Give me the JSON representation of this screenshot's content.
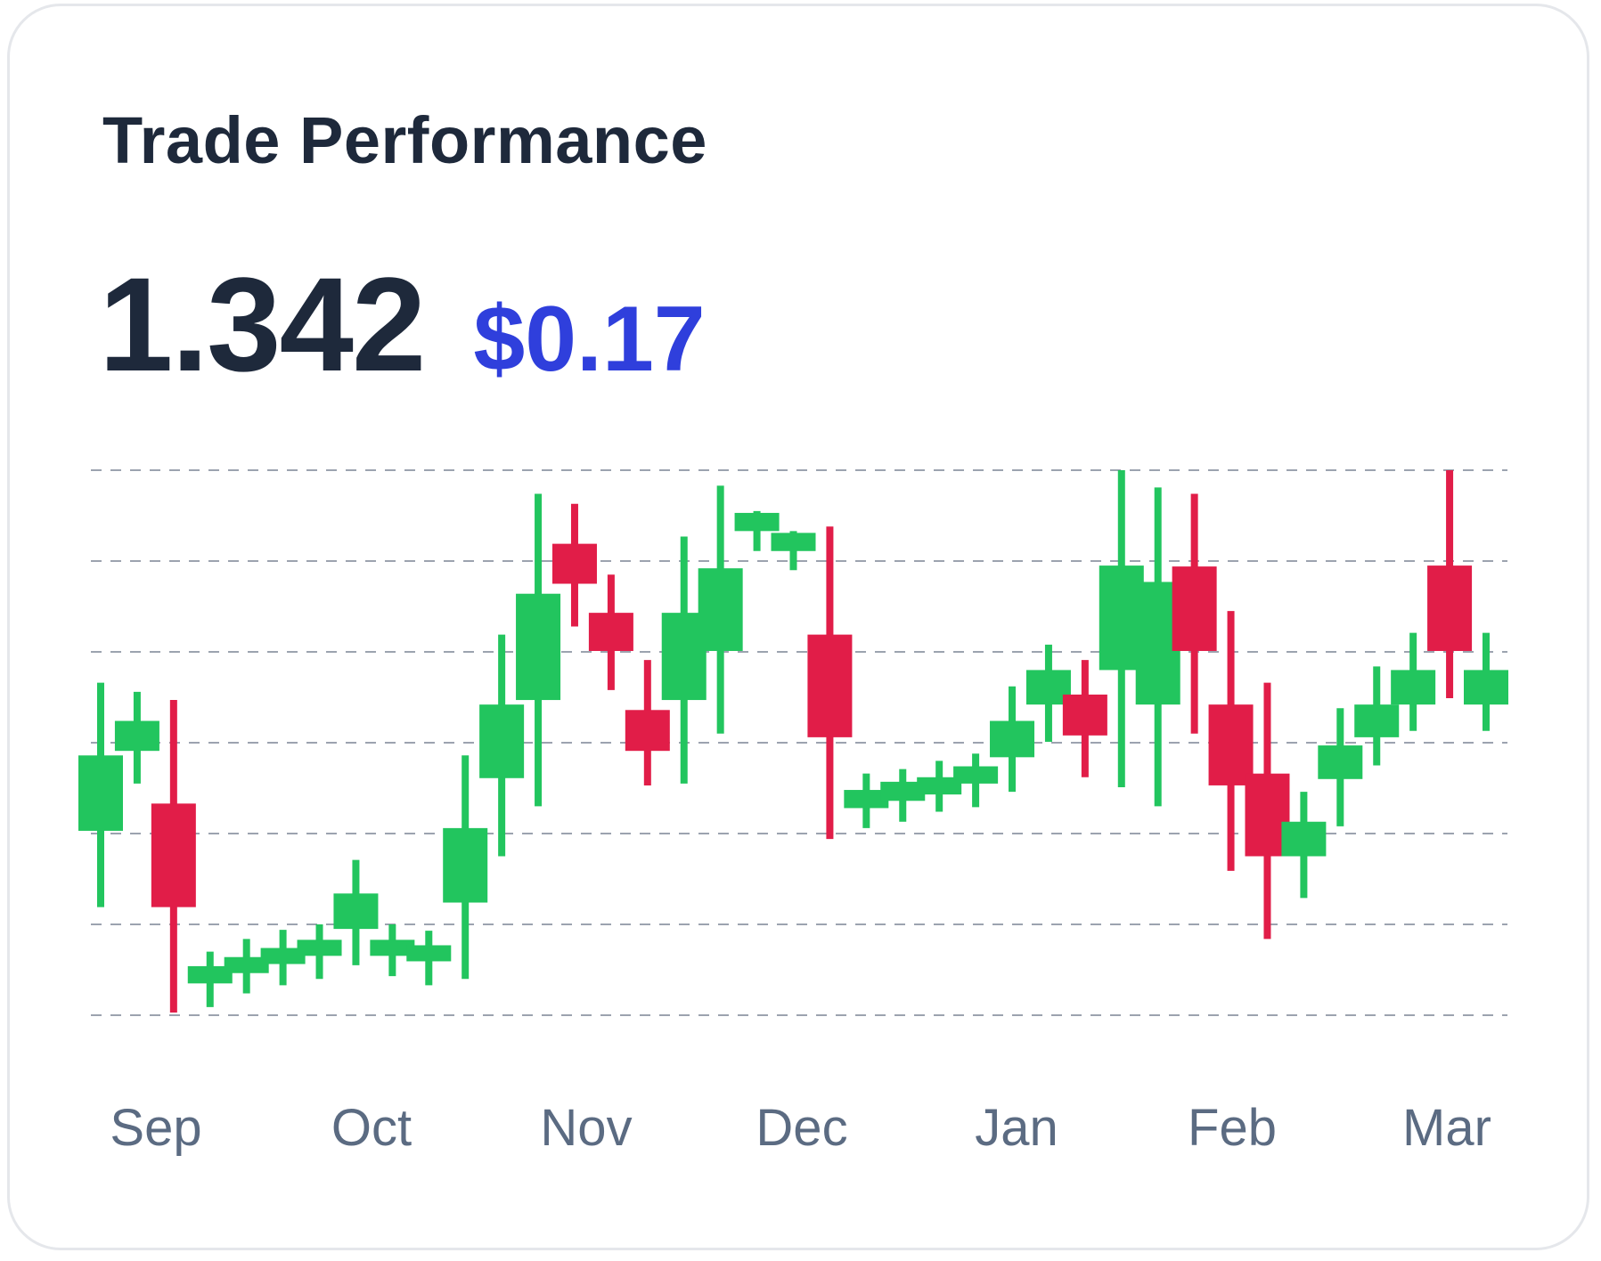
{
  "card": {
    "title": "Trade Performance",
    "metric_value": "1.342",
    "metric_change": "$0.17"
  },
  "colors": {
    "up": "#22c55e",
    "down": "#e11d48",
    "grid": "#9ca3af",
    "title": "#1e293b",
    "accent": "#2f3fdc",
    "axis_text": "#5b6b82"
  },
  "chart_data": {
    "type": "candlestick",
    "title": "",
    "xlabel": "",
    "ylabel": "",
    "ylim": [
      0,
      6
    ],
    "grid": true,
    "legend": "none",
    "x_labels": [
      "Sep",
      "Oct",
      "Nov",
      "Dec",
      "Jan",
      "Feb",
      "Mar"
    ],
    "candles": [
      {
        "o": 2.03,
        "h": 3.66,
        "l": 1.19,
        "c": 2.86
      },
      {
        "o": 2.91,
        "h": 3.56,
        "l": 2.55,
        "c": 3.24
      },
      {
        "o": 2.33,
        "h": 3.47,
        "l": 0.03,
        "c": 1.19
      },
      {
        "o": 0.35,
        "h": 0.7,
        "l": 0.09,
        "c": 0.54
      },
      {
        "o": 0.5,
        "h": 0.84,
        "l": 0.24,
        "c": 0.64
      },
      {
        "o": 0.64,
        "h": 0.94,
        "l": 0.33,
        "c": 0.74
      },
      {
        "o": 0.67,
        "h": 1.0,
        "l": 0.4,
        "c": 0.83
      },
      {
        "o": 0.95,
        "h": 1.71,
        "l": 0.55,
        "c": 1.34
      },
      {
        "o": 0.7,
        "h": 1.0,
        "l": 0.43,
        "c": 0.83
      },
      {
        "o": 0.6,
        "h": 0.93,
        "l": 0.33,
        "c": 0.77
      },
      {
        "o": 1.24,
        "h": 2.86,
        "l": 0.4,
        "c": 2.06
      },
      {
        "o": 2.61,
        "h": 4.19,
        "l": 1.75,
        "c": 3.42
      },
      {
        "o": 3.47,
        "h": 5.74,
        "l": 2.3,
        "c": 4.64
      },
      {
        "o": 5.19,
        "h": 5.63,
        "l": 4.28,
        "c": 4.75
      },
      {
        "o": 4.43,
        "h": 4.85,
        "l": 3.58,
        "c": 4.01
      },
      {
        "o": 3.36,
        "h": 3.91,
        "l": 2.53,
        "c": 2.91
      },
      {
        "o": 3.47,
        "h": 5.27,
        "l": 2.55,
        "c": 4.43
      },
      {
        "o": 4.01,
        "h": 5.83,
        "l": 3.1,
        "c": 4.92
      },
      {
        "o": 5.33,
        "h": 5.55,
        "l": 5.11,
        "c": 5.53
      },
      {
        "o": 5.11,
        "h": 5.33,
        "l": 4.9,
        "c": 5.31
      },
      {
        "o": 4.19,
        "h": 5.38,
        "l": 1.94,
        "c": 3.06
      },
      {
        "o": 2.28,
        "h": 2.66,
        "l": 2.06,
        "c": 2.48
      },
      {
        "o": 2.36,
        "h": 2.71,
        "l": 2.13,
        "c": 2.57
      },
      {
        "o": 2.43,
        "h": 2.8,
        "l": 2.24,
        "c": 2.62
      },
      {
        "o": 2.55,
        "h": 2.88,
        "l": 2.29,
        "c": 2.74
      },
      {
        "o": 2.84,
        "h": 3.62,
        "l": 2.46,
        "c": 3.24
      },
      {
        "o": 3.42,
        "h": 4.08,
        "l": 3.01,
        "c": 3.8
      },
      {
        "o": 3.53,
        "h": 3.91,
        "l": 2.62,
        "c": 3.08
      },
      {
        "o": 3.8,
        "h": 6.0,
        "l": 2.51,
        "c": 4.95
      },
      {
        "o": 3.42,
        "h": 5.81,
        "l": 2.3,
        "c": 4.77
      },
      {
        "o": 4.94,
        "h": 5.74,
        "l": 3.1,
        "c": 4.01
      },
      {
        "o": 3.42,
        "h": 4.45,
        "l": 1.59,
        "c": 2.53
      },
      {
        "o": 2.66,
        "h": 3.66,
        "l": 0.84,
        "c": 1.75
      },
      {
        "o": 1.75,
        "h": 2.46,
        "l": 1.29,
        "c": 2.13
      },
      {
        "o": 2.6,
        "h": 3.38,
        "l": 2.08,
        "c": 2.97
      },
      {
        "o": 3.06,
        "h": 3.84,
        "l": 2.75,
        "c": 3.42
      },
      {
        "o": 3.42,
        "h": 4.21,
        "l": 3.13,
        "c": 3.8
      },
      {
        "o": 4.95,
        "h": 6.0,
        "l": 3.49,
        "c": 4.01
      },
      {
        "o": 3.42,
        "h": 4.21,
        "l": 3.13,
        "c": 3.8
      }
    ]
  }
}
